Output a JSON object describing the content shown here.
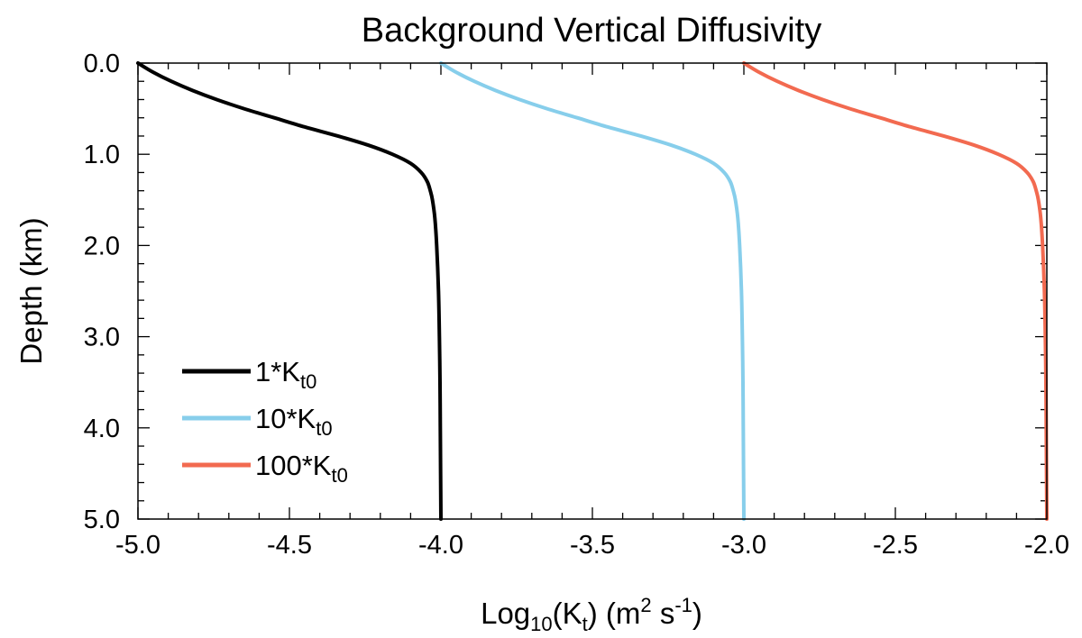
{
  "chart_data": {
    "type": "line",
    "title": "Background Vertical Diffusivity",
    "xlabel": {
      "prefix": "Log",
      "prefix_sub": "10",
      "open": "(K",
      "open_sub": "t",
      "close": ") (m",
      "unit_sup1": "2",
      "unit_mid": " s",
      "unit_sup2": "-1",
      "unit_end": ")"
    },
    "ylabel": "Depth (km)",
    "xlim": [
      -5.0,
      -2.0
    ],
    "ylim": [
      0.0,
      5.0
    ],
    "y_inverted": true,
    "x_ticks": [
      "-5.0",
      "-4.5",
      "-4.0",
      "-3.5",
      "-3.0",
      "-2.5",
      "-2.0"
    ],
    "y_ticks": [
      "0.0",
      "1.0",
      "2.0",
      "3.0",
      "4.0",
      "5.0"
    ],
    "legend_position": "bottom-left",
    "depth_km": [
      0.0,
      0.1,
      0.2,
      0.3,
      0.4,
      0.5,
      0.6,
      0.7,
      0.8,
      0.9,
      1.0,
      1.1,
      1.2,
      1.3,
      1.4,
      1.5,
      1.7,
      2.0,
      2.5,
      3.0,
      3.5,
      4.0,
      4.5,
      5.0
    ],
    "series": [
      {
        "name": "1*K",
        "name_sub": "t0",
        "color": "#000000",
        "values": [
          -5.0,
          -4.95,
          -4.89,
          -4.82,
          -4.74,
          -4.65,
          -4.55,
          -4.45,
          -4.34,
          -4.24,
          -4.16,
          -4.1,
          -4.065,
          -4.045,
          -4.035,
          -4.028,
          -4.02,
          -4.014,
          -4.008,
          -4.005,
          -4.003,
          -4.002,
          -4.001,
          -4.0
        ]
      },
      {
        "name": "10*K",
        "name_sub": "t0",
        "color": "#87CEEB",
        "values": [
          -4.0,
          -3.95,
          -3.89,
          -3.82,
          -3.74,
          -3.65,
          -3.55,
          -3.45,
          -3.34,
          -3.24,
          -3.16,
          -3.1,
          -3.065,
          -3.045,
          -3.035,
          -3.028,
          -3.02,
          -3.014,
          -3.008,
          -3.005,
          -3.003,
          -3.002,
          -3.001,
          -3.0
        ]
      },
      {
        "name": "100*K",
        "name_sub": "t0",
        "color": "#F26A50",
        "values": [
          -3.0,
          -2.95,
          -2.89,
          -2.82,
          -2.74,
          -2.65,
          -2.55,
          -2.45,
          -2.34,
          -2.24,
          -2.16,
          -2.1,
          -2.065,
          -2.045,
          -2.035,
          -2.028,
          -2.02,
          -2.014,
          -2.008,
          -2.005,
          -2.003,
          -2.002,
          -2.001,
          -2.0
        ]
      }
    ]
  }
}
